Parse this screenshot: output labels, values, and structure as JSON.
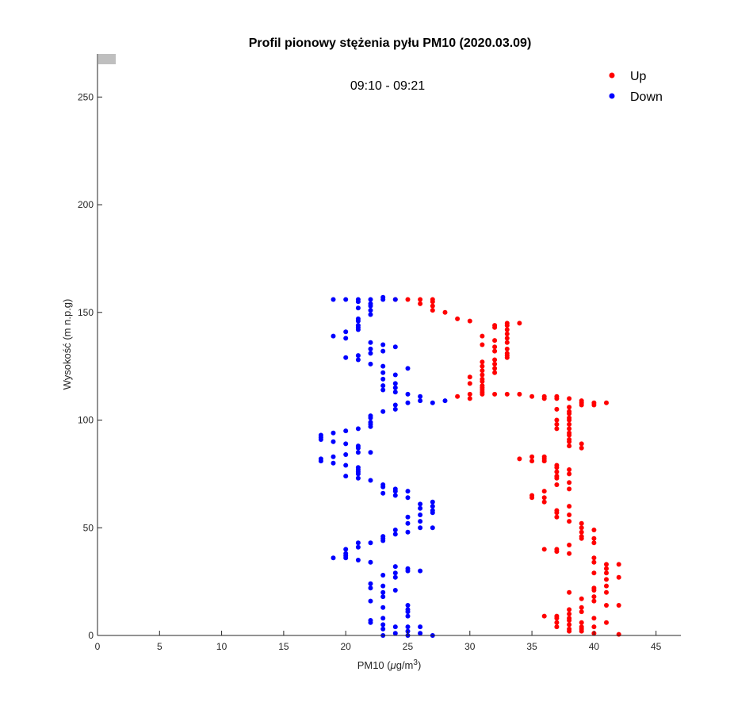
{
  "chart_data": {
    "type": "scatter",
    "title": "Profil pionowy stężenia pyłu PM10 (2020.03.09)",
    "subtitle": "09:10 - 09:21",
    "xlabel": "PM10 (",
    "xlabel_mu": "μ",
    "xlabel_unit": "g/m",
    "xlabel_exp": "3",
    "xlabel_close": ")",
    "ylabel": "Wysokość (m n.p.g)",
    "xlim": [
      0,
      47
    ],
    "ylim": [
      0,
      270
    ],
    "xticks": [
      0,
      5,
      10,
      15,
      20,
      25,
      30,
      35,
      40,
      45
    ],
    "yticks": [
      0,
      50,
      100,
      150,
      200,
      250
    ],
    "xtick_labels": [
      "0",
      "5",
      "10",
      "15",
      "20",
      "25",
      "30",
      "35",
      "40",
      "45"
    ],
    "ytick_labels": [
      "0",
      "50",
      "100",
      "150",
      "200",
      "250"
    ],
    "grid": false,
    "legend_position": "top-right",
    "series": [
      {
        "name": "Up",
        "color": "#ff0000",
        "points": [
          [
            42,
            0.5
          ],
          [
            40,
            1
          ],
          [
            39,
            2
          ],
          [
            38,
            2
          ],
          [
            38,
            3
          ],
          [
            39,
            3
          ],
          [
            37,
            4
          ],
          [
            39,
            4
          ],
          [
            40,
            4
          ],
          [
            38,
            5
          ],
          [
            37,
            6
          ],
          [
            39,
            6
          ],
          [
            41,
            6
          ],
          [
            38,
            7
          ],
          [
            37,
            8
          ],
          [
            38,
            8
          ],
          [
            40,
            8
          ],
          [
            37,
            9
          ],
          [
            36,
            9
          ],
          [
            38,
            10
          ],
          [
            39,
            11
          ],
          [
            38,
            12
          ],
          [
            39,
            13
          ],
          [
            42,
            14
          ],
          [
            41,
            14
          ],
          [
            40,
            16
          ],
          [
            39,
            17
          ],
          [
            40,
            18
          ],
          [
            38,
            20
          ],
          [
            41,
            20
          ],
          [
            40,
            21
          ],
          [
            40,
            22
          ],
          [
            41,
            23
          ],
          [
            41,
            26
          ],
          [
            42,
            27
          ],
          [
            41,
            29
          ],
          [
            40,
            29
          ],
          [
            41,
            31
          ],
          [
            42,
            33
          ],
          [
            41,
            33
          ],
          [
            40,
            34
          ],
          [
            40,
            36
          ],
          [
            38,
            38
          ],
          [
            37,
            39
          ],
          [
            37,
            40
          ],
          [
            36,
            40
          ],
          [
            38,
            42
          ],
          [
            40,
            43
          ],
          [
            40,
            45
          ],
          [
            39,
            45
          ],
          [
            39,
            46
          ],
          [
            39,
            48
          ],
          [
            40,
            49
          ],
          [
            39,
            50
          ],
          [
            39,
            52
          ],
          [
            38,
            53
          ],
          [
            37,
            55
          ],
          [
            38,
            56
          ],
          [
            37,
            57
          ],
          [
            37,
            58
          ],
          [
            38,
            60
          ],
          [
            36,
            62
          ],
          [
            36,
            64
          ],
          [
            35,
            64
          ],
          [
            35,
            65
          ],
          [
            36,
            67
          ],
          [
            38,
            68
          ],
          [
            37,
            70
          ],
          [
            38,
            71
          ],
          [
            37,
            73
          ],
          [
            37,
            74
          ],
          [
            38,
            75
          ],
          [
            37,
            76
          ],
          [
            38,
            77
          ],
          [
            37,
            78
          ],
          [
            37,
            79
          ],
          [
            36,
            81
          ],
          [
            35,
            81
          ],
          [
            36,
            82
          ],
          [
            34,
            82
          ],
          [
            35,
            83
          ],
          [
            36,
            83
          ],
          [
            39,
            87
          ],
          [
            38,
            88
          ],
          [
            39,
            89
          ],
          [
            38,
            90
          ],
          [
            38,
            91
          ],
          [
            38,
            93
          ],
          [
            38,
            94
          ],
          [
            38,
            96
          ],
          [
            37,
            96
          ],
          [
            38,
            98
          ],
          [
            37,
            98
          ],
          [
            38,
            100
          ],
          [
            37,
            100
          ],
          [
            38,
            101
          ],
          [
            38,
            103
          ],
          [
            38,
            104
          ],
          [
            37,
            105
          ],
          [
            38,
            106
          ],
          [
            39,
            107
          ],
          [
            40,
            107
          ],
          [
            39,
            108
          ],
          [
            40,
            108
          ],
          [
            41,
            108
          ],
          [
            39,
            109
          ],
          [
            38,
            110
          ],
          [
            37,
            110
          ],
          [
            36,
            110
          ],
          [
            37,
            111
          ],
          [
            35,
            111
          ],
          [
            36,
            111
          ],
          [
            34,
            112
          ],
          [
            33,
            112
          ],
          [
            32,
            112
          ],
          [
            31,
            112
          ],
          [
            30,
            112
          ],
          [
            29,
            111
          ],
          [
            30,
            110
          ],
          [
            31,
            113
          ],
          [
            31,
            114
          ],
          [
            31,
            115
          ],
          [
            31,
            116
          ],
          [
            30,
            117
          ],
          [
            31,
            118
          ],
          [
            31,
            119
          ],
          [
            30,
            120
          ],
          [
            31,
            121
          ],
          [
            32,
            122
          ],
          [
            31,
            123
          ],
          [
            32,
            124
          ],
          [
            31,
            125
          ],
          [
            32,
            126
          ],
          [
            31,
            127
          ],
          [
            32,
            128
          ],
          [
            33,
            129
          ],
          [
            33,
            130
          ],
          [
            33,
            131
          ],
          [
            32,
            132
          ],
          [
            33,
            133
          ],
          [
            32,
            134
          ],
          [
            31,
            135
          ],
          [
            33,
            136
          ],
          [
            32,
            137
          ],
          [
            33,
            138
          ],
          [
            31,
            139
          ],
          [
            33,
            140
          ],
          [
            33,
            142
          ],
          [
            32,
            143
          ],
          [
            33,
            144
          ],
          [
            34,
            145
          ],
          [
            33,
            145
          ],
          [
            32,
            144
          ],
          [
            30,
            146
          ],
          [
            29,
            147
          ],
          [
            28,
            150
          ],
          [
            27,
            151
          ],
          [
            27,
            153
          ],
          [
            26,
            154
          ],
          [
            27,
            155
          ],
          [
            26,
            156
          ],
          [
            27,
            156
          ],
          [
            25,
            156
          ],
          [
            24,
            156
          ]
        ]
      },
      {
        "name": "Down",
        "color": "#0000ff",
        "points": [
          [
            23,
            0
          ],
          [
            25,
            0
          ],
          [
            27,
            0
          ],
          [
            24,
            1
          ],
          [
            26,
            1
          ],
          [
            25,
            2
          ],
          [
            23,
            3
          ],
          [
            24,
            4
          ],
          [
            25,
            4
          ],
          [
            26,
            4
          ],
          [
            23,
            5
          ],
          [
            22,
            6
          ],
          [
            22,
            7
          ],
          [
            23,
            8
          ],
          [
            25,
            9
          ],
          [
            25,
            11
          ],
          [
            25,
            12
          ],
          [
            23,
            13
          ],
          [
            25,
            14
          ],
          [
            22,
            16
          ],
          [
            23,
            18
          ],
          [
            23,
            20
          ],
          [
            24,
            21
          ],
          [
            22,
            22
          ],
          [
            23,
            23
          ],
          [
            22,
            24
          ],
          [
            24,
            27
          ],
          [
            23,
            28
          ],
          [
            24,
            29
          ],
          [
            25,
            30
          ],
          [
            26,
            30
          ],
          [
            25,
            31
          ],
          [
            24,
            32
          ],
          [
            22,
            34
          ],
          [
            21,
            35
          ],
          [
            19,
            36
          ],
          [
            20,
            36
          ],
          [
            20,
            37
          ],
          [
            20,
            38
          ],
          [
            20,
            40
          ],
          [
            21,
            41
          ],
          [
            21,
            43
          ],
          [
            22,
            43
          ],
          [
            23,
            44
          ],
          [
            23,
            45
          ],
          [
            23,
            46
          ],
          [
            24,
            47
          ],
          [
            25,
            48
          ],
          [
            24,
            49
          ],
          [
            26,
            50
          ],
          [
            27,
            50
          ],
          [
            25,
            52
          ],
          [
            26,
            53
          ],
          [
            25,
            55
          ],
          [
            26,
            56
          ],
          [
            27,
            57
          ],
          [
            27,
            58
          ],
          [
            26,
            59
          ],
          [
            27,
            60
          ],
          [
            26,
            61
          ],
          [
            27,
            62
          ],
          [
            25,
            64
          ],
          [
            24,
            65
          ],
          [
            23,
            66
          ],
          [
            24,
            67
          ],
          [
            25,
            67
          ],
          [
            24,
            68
          ],
          [
            23,
            69
          ],
          [
            23,
            70
          ],
          [
            22,
            72
          ],
          [
            21,
            73
          ],
          [
            20,
            74
          ],
          [
            21,
            75
          ],
          [
            21,
            76
          ],
          [
            21,
            77
          ],
          [
            21,
            78
          ],
          [
            20,
            79
          ],
          [
            19,
            80
          ],
          [
            18,
            81
          ],
          [
            18,
            82
          ],
          [
            19,
            83
          ],
          [
            20,
            84
          ],
          [
            21,
            85
          ],
          [
            22,
            85
          ],
          [
            21,
            87
          ],
          [
            21,
            88
          ],
          [
            20,
            89
          ],
          [
            19,
            90
          ],
          [
            18,
            91
          ],
          [
            18,
            92
          ],
          [
            18,
            93
          ],
          [
            19,
            94
          ],
          [
            20,
            95
          ],
          [
            21,
            96
          ],
          [
            22,
            97
          ],
          [
            22,
            98
          ],
          [
            22,
            99
          ],
          [
            22,
            101
          ],
          [
            22,
            102
          ],
          [
            23,
            104
          ],
          [
            24,
            105
          ],
          [
            24,
            107
          ],
          [
            25,
            108
          ],
          [
            26,
            109
          ],
          [
            27,
            108
          ],
          [
            28,
            109
          ],
          [
            26,
            111
          ],
          [
            25,
            112
          ],
          [
            24,
            113
          ],
          [
            23,
            114
          ],
          [
            24,
            115
          ],
          [
            23,
            116
          ],
          [
            24,
            117
          ],
          [
            23,
            119
          ],
          [
            24,
            121
          ],
          [
            23,
            122
          ],
          [
            25,
            124
          ],
          [
            23,
            125
          ],
          [
            22,
            126
          ],
          [
            21,
            128
          ],
          [
            20,
            129
          ],
          [
            21,
            130
          ],
          [
            22,
            131
          ],
          [
            23,
            132
          ],
          [
            22,
            133
          ],
          [
            24,
            134
          ],
          [
            23,
            135
          ],
          [
            22,
            136
          ],
          [
            20,
            138
          ],
          [
            19,
            139
          ],
          [
            20,
            141
          ],
          [
            21,
            142
          ],
          [
            21,
            143
          ],
          [
            21,
            144
          ],
          [
            21,
            146
          ],
          [
            21,
            147
          ],
          [
            22,
            149
          ],
          [
            22,
            151
          ],
          [
            21,
            152
          ],
          [
            22,
            153
          ],
          [
            22,
            154
          ],
          [
            21,
            155
          ],
          [
            21,
            156
          ],
          [
            22,
            156
          ],
          [
            23,
            156
          ],
          [
            24,
            156
          ],
          [
            20,
            156
          ],
          [
            19,
            156
          ],
          [
            23,
            157
          ]
        ]
      }
    ]
  }
}
